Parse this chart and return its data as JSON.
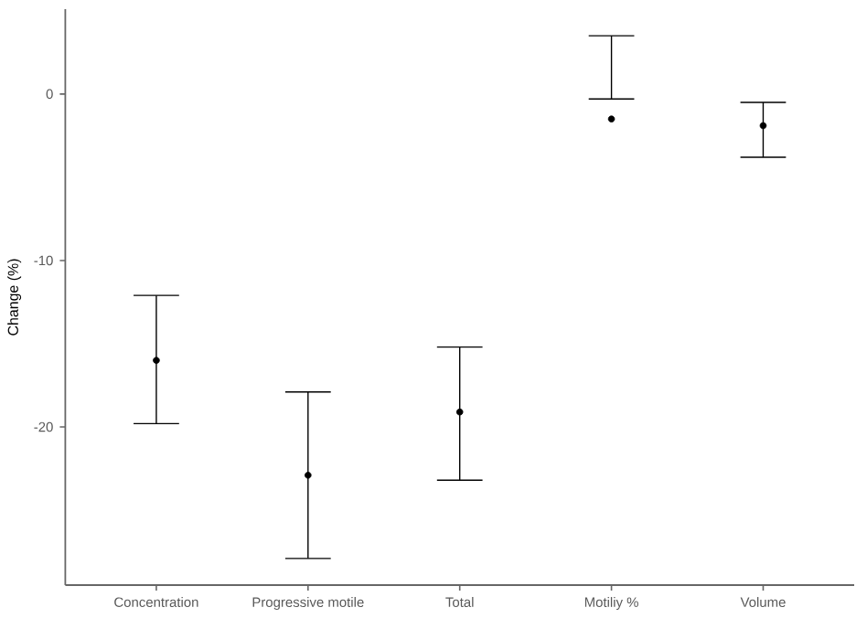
{
  "chart_data": {
    "type": "scatter",
    "ylabel": "Change (%)",
    "categories": [
      "Concentration",
      "Progressive motile",
      "Total",
      "Motiliy %",
      "Volume"
    ],
    "values": [
      -16.0,
      -22.9,
      -19.1,
      -1.5,
      -1.9
    ],
    "errors": [
      [
        -19.8,
        -12.1
      ],
      [
        -27.9,
        -17.9
      ],
      [
        -23.2,
        -15.2
      ],
      [
        -0.3,
        3.5
      ],
      [
        -3.8,
        -0.5
      ]
    ],
    "color": "#000000",
    "ylim": [
      -29.5,
      5.1
    ],
    "yticks": [
      -20,
      -10,
      0
    ]
  }
}
